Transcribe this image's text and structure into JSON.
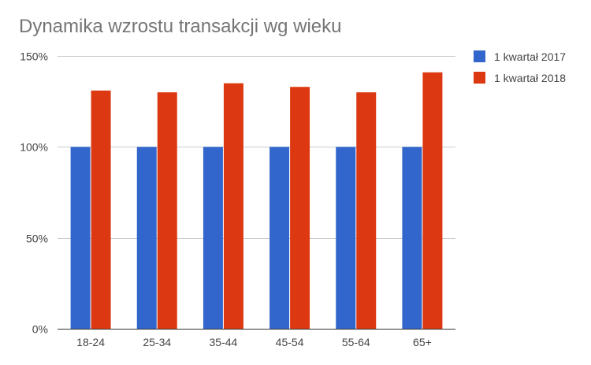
{
  "chart_data": {
    "type": "bar",
    "title": "Dynamika wzrostu transakcji wg wieku",
    "xlabel": "",
    "ylabel": "",
    "categories": [
      "18-24",
      "25-34",
      "35-44",
      "45-54",
      "55-64",
      "65+"
    ],
    "series": [
      {
        "name": "1 kwartał 2017",
        "color": "#3366cc",
        "values": [
          100,
          100,
          100,
          100,
          100,
          100
        ]
      },
      {
        "name": "1 kwartał 2018",
        "color": "#dc3912",
        "values": [
          131,
          130,
          135,
          133,
          130,
          141
        ]
      }
    ],
    "ylim": [
      0,
      150
    ],
    "yticks": [
      0,
      50,
      100,
      150
    ],
    "ytick_labels": [
      "0%",
      "50%",
      "100%",
      "150%"
    ],
    "grid": true,
    "legend_position": "right"
  }
}
